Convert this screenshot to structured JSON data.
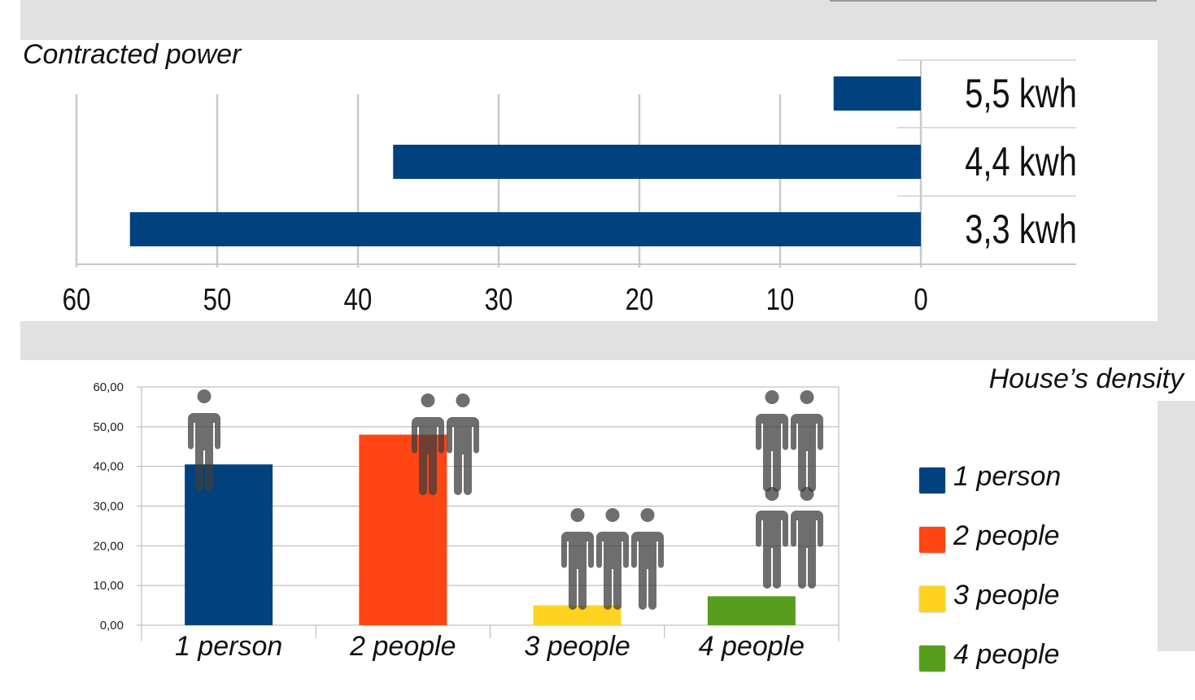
{
  "chart_data": [
    {
      "type": "bar",
      "orientation": "horizontal",
      "title": "Contracted power",
      "categories": [
        "5,5 kwh",
        "4,4 kwh",
        "3,3 kwh"
      ],
      "values": [
        6.2,
        37.5,
        56.2
      ],
      "xlim": [
        60,
        0
      ],
      "ticks": [
        "60",
        "50",
        "40",
        "30",
        "20",
        "10",
        "0"
      ],
      "color": "#00427f"
    },
    {
      "type": "bar",
      "title": "House’s density",
      "categories": [
        "1 person",
        "2 people",
        "3 people",
        "4 people"
      ],
      "values": [
        40.5,
        48.0,
        5.0,
        7.3
      ],
      "people_icons": [
        1,
        2,
        3,
        4
      ],
      "ylim": [
        0,
        60
      ],
      "ticks": [
        "0,00",
        "10,00",
        "20,00",
        "30,00",
        "40,00",
        "50,00",
        "60,00"
      ],
      "colors": [
        "#00427f",
        "#ff4514",
        "#ffd320",
        "#579d1c"
      ],
      "legend": [
        "1 person",
        "2 people",
        "3 people",
        "4 people"
      ]
    }
  ]
}
